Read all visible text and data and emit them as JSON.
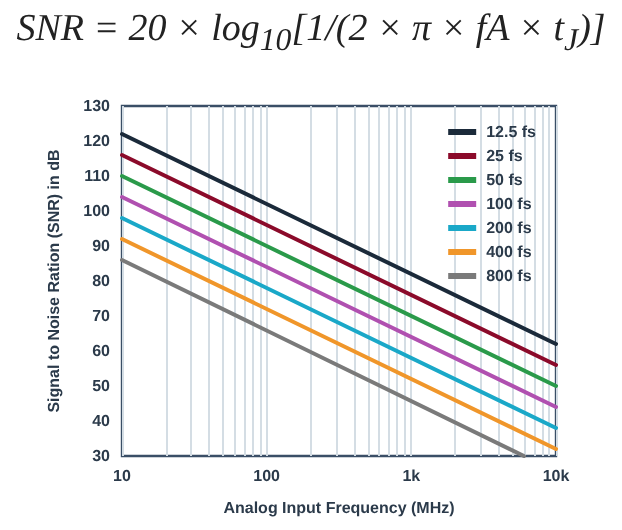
{
  "chart_data": {
    "type": "line",
    "title": "SNR = 20 × log$_{10}$[1/(2 × π × fA × t$_{J}$)]",
    "xlabel": "Analog Input Frequency (MHz)",
    "ylabel": "Signal to Noise Ration (SNR) in dB",
    "log": "x",
    "grid": "x",
    "legend": "top right",
    "marker": "none",
    "line_style": "solid",
    "xlim": [
      10,
      10000
    ],
    "xticks": [
      10,
      {
        "value": 20,
        "label": null
      },
      {
        "value": 30,
        "label": null
      },
      {
        "value": 40,
        "label": null
      },
      {
        "value": 50,
        "label": null
      },
      {
        "value": 60,
        "label": null
      },
      {
        "value": 70,
        "label": null
      },
      {
        "value": 80,
        "label": null
      },
      {
        "value": 90,
        "label": null
      },
      100,
      {
        "value": 200,
        "label": null
      },
      {
        "value": 300,
        "label": null
      },
      {
        "value": 400,
        "label": null
      },
      {
        "value": 500,
        "label": null
      },
      {
        "value": 600,
        "label": null
      },
      {
        "value": 700,
        "label": null
      },
      {
        "value": 800,
        "label": null
      },
      {
        "value": 900,
        "label": null
      },
      {
        "value": 1000,
        "label": "1k"
      },
      {
        "value": 2000,
        "label": null
      },
      {
        "value": 3000,
        "label": null
      },
      {
        "value": 4000,
        "label": null
      },
      {
        "value": 5000,
        "label": null
      },
      {
        "value": 6000,
        "label": null
      },
      {
        "value": 7000,
        "label": null
      },
      {
        "value": 8000,
        "label": null
      },
      {
        "value": 9000,
        "label": null
      },
      {
        "value": 10000,
        "label": "10k"
      }
    ],
    "ylim": [
      30,
      130
    ],
    "yticks": [
      30,
      40,
      50,
      60,
      70,
      80,
      90,
      100,
      110,
      120,
      130
    ],
    "series": [
      {
        "name": "12.5 fs",
        "color": "#1b2a3a",
        "x": [
          10,
          10000
        ],
        "values": [
          122,
          62
        ]
      },
      {
        "name": "25 fs",
        "color": "#8b0a2a",
        "x": [
          10,
          10000
        ],
        "values": [
          116,
          56
        ]
      },
      {
        "name": "50 fs",
        "color": "#2a9a4a",
        "x": [
          10,
          10000
        ],
        "values": [
          110,
          50
        ]
      },
      {
        "name": "100 fs",
        "color": "#b050b0",
        "x": [
          10,
          10000
        ],
        "values": [
          104,
          44
        ]
      },
      {
        "name": "200 fs",
        "color": "#1aa8c8",
        "x": [
          10,
          10000
        ],
        "values": [
          98,
          38
        ]
      },
      {
        "name": "400 fs",
        "color": "#f0962a",
        "x": [
          10,
          10000
        ],
        "values": [
          92,
          32
        ]
      },
      {
        "name": "800 fs",
        "color": "#7a7a7a",
        "x": [
          10,
          6000
        ],
        "values": [
          86,
          30
        ]
      }
    ]
  }
}
